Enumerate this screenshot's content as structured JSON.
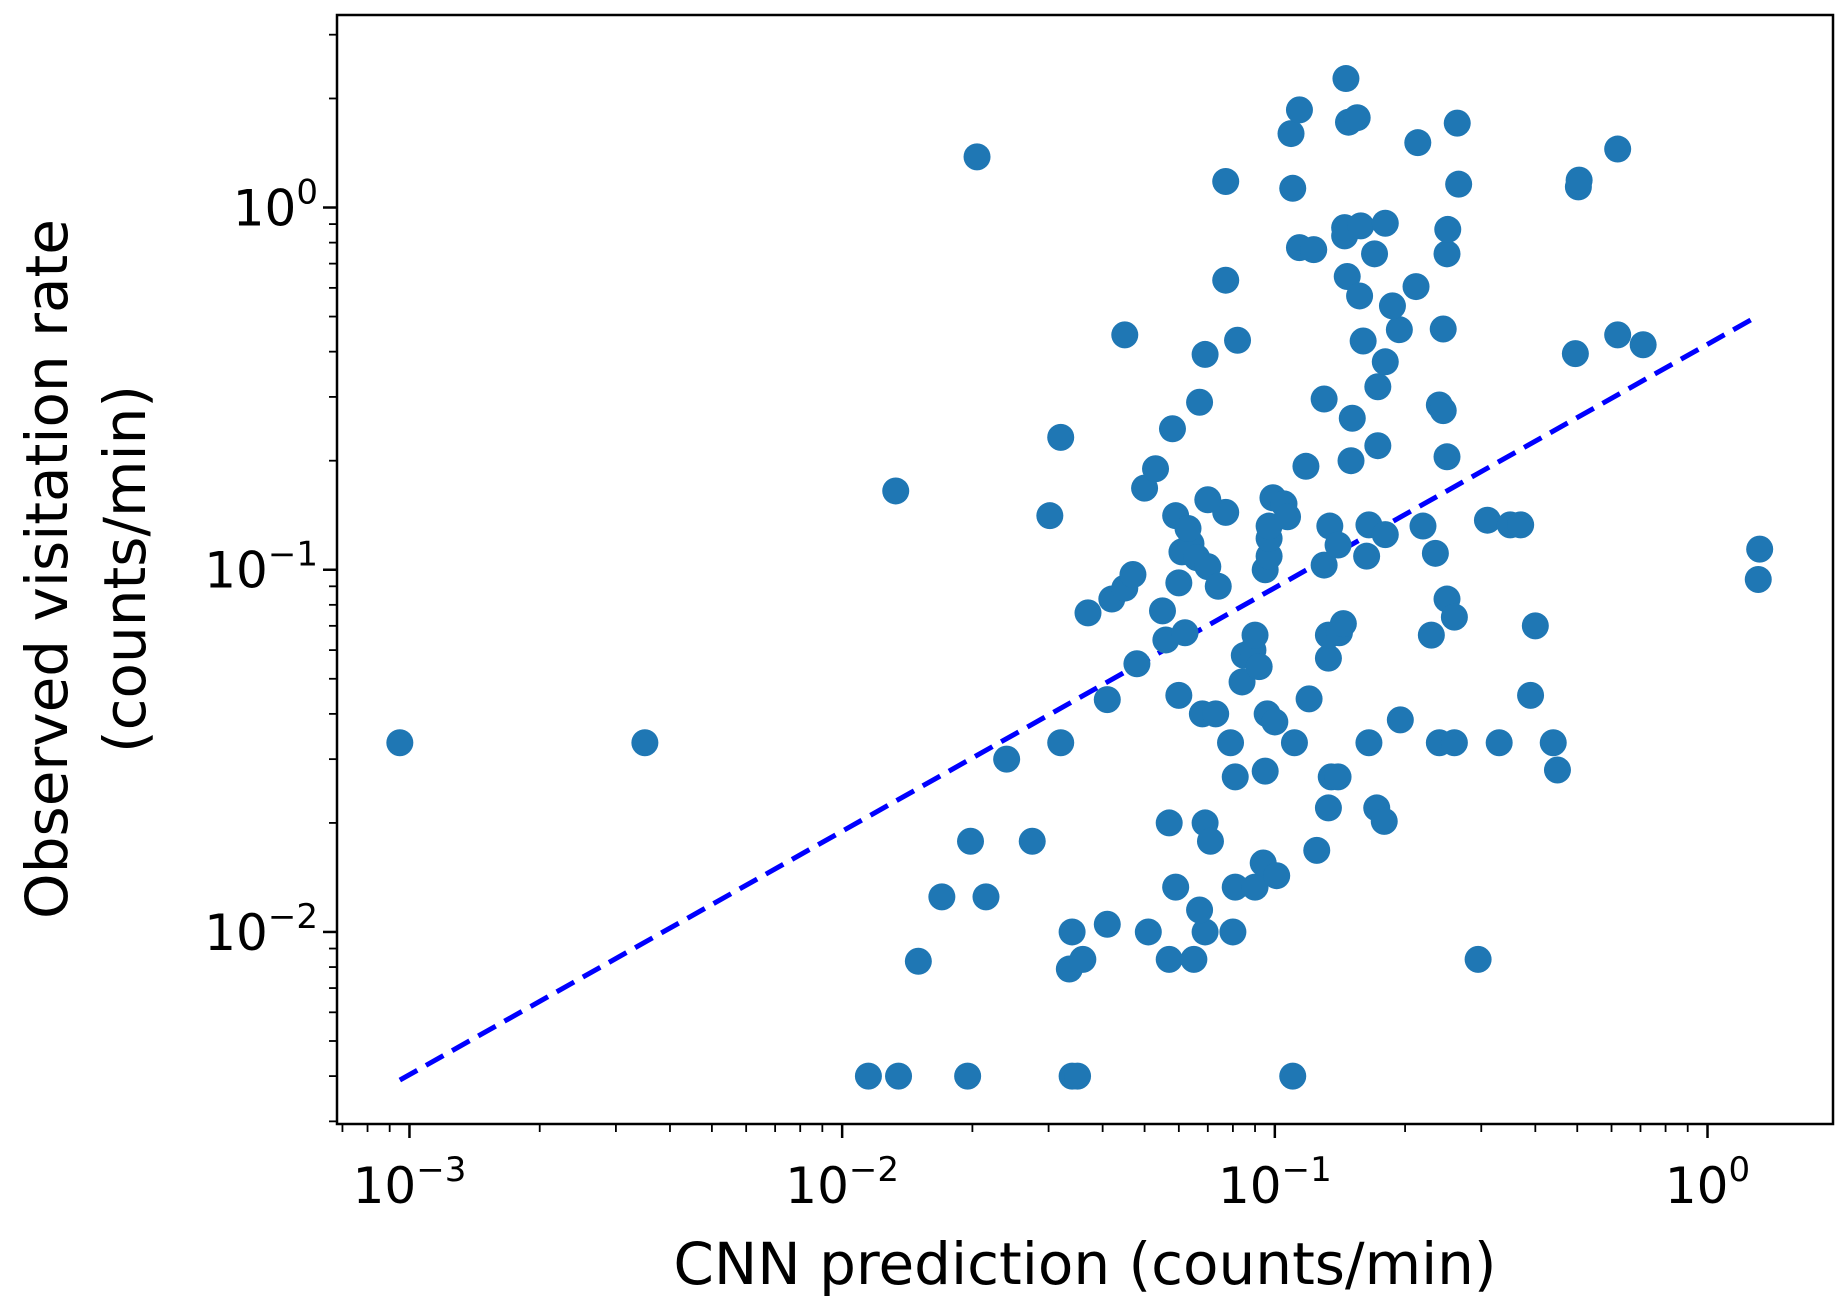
{
  "chart_data": {
    "type": "scatter",
    "xlabel": "CNN prediction (counts/min)",
    "ylabel_line1": "Observed visitation rate",
    "ylabel_line2": "(counts/min)",
    "xscale": "log",
    "yscale": "log",
    "xlim": [
      0.00068,
      1.95
    ],
    "ylim": [
      0.00295,
      3.4
    ],
    "grid": false,
    "legend": "none",
    "marker_color": "#1f77b4",
    "fit_line": {
      "color": "#0000ff",
      "style": "dashed",
      "x": [
        0.00095,
        1.3
      ],
      "y": [
        0.0039,
        0.5
      ]
    },
    "x_ticks": [
      {
        "value": 0.001,
        "base": "10",
        "exp": "−3"
      },
      {
        "value": 0.01,
        "base": "10",
        "exp": "−2"
      },
      {
        "value": 0.1,
        "base": "10",
        "exp": "−1"
      },
      {
        "value": 1,
        "base": "10",
        "exp": "0"
      }
    ],
    "y_ticks": [
      {
        "value": 0.01,
        "base": "10",
        "exp": "−2"
      },
      {
        "value": 0.1,
        "base": "10",
        "exp": "−1"
      },
      {
        "value": 1,
        "base": "10",
        "exp": "0"
      }
    ],
    "points": [
      [
        0.00095,
        0.0333
      ],
      [
        0.0035,
        0.0333
      ],
      [
        0.0115,
        0.004
      ],
      [
        0.0135,
        0.004
      ],
      [
        0.0195,
        0.004
      ],
      [
        0.034,
        0.004
      ],
      [
        0.035,
        0.004
      ],
      [
        0.11,
        0.004
      ],
      [
        0.015,
        0.0083
      ],
      [
        0.0335,
        0.0079
      ],
      [
        0.036,
        0.0084
      ],
      [
        0.057,
        0.0084
      ],
      [
        0.065,
        0.0084
      ],
      [
        0.295,
        0.0084
      ],
      [
        0.034,
        0.01
      ],
      [
        0.041,
        0.0105
      ],
      [
        0.051,
        0.01
      ],
      [
        0.069,
        0.01
      ],
      [
        0.08,
        0.01
      ],
      [
        0.017,
        0.0125
      ],
      [
        0.0215,
        0.0125
      ],
      [
        0.059,
        0.0133
      ],
      [
        0.067,
        0.0115
      ],
      [
        0.081,
        0.0133
      ],
      [
        0.09,
        0.0133
      ],
      [
        0.094,
        0.0155
      ],
      [
        0.101,
        0.0143
      ],
      [
        0.0198,
        0.0178
      ],
      [
        0.0275,
        0.0178
      ],
      [
        0.057,
        0.02
      ],
      [
        0.069,
        0.02
      ],
      [
        0.071,
        0.0178
      ],
      [
        0.125,
        0.0168
      ],
      [
        0.133,
        0.022
      ],
      [
        0.172,
        0.022
      ],
      [
        0.179,
        0.0202
      ],
      [
        0.024,
        0.03
      ],
      [
        0.032,
        0.0333
      ],
      [
        0.068,
        0.04
      ],
      [
        0.073,
        0.04
      ],
      [
        0.079,
        0.0333
      ],
      [
        0.081,
        0.0268
      ],
      [
        0.095,
        0.0278
      ],
      [
        0.096,
        0.04
      ],
      [
        0.1,
        0.038
      ],
      [
        0.111,
        0.0333
      ],
      [
        0.135,
        0.0268
      ],
      [
        0.14,
        0.0268
      ],
      [
        0.165,
        0.0333
      ],
      [
        0.195,
        0.0385
      ],
      [
        0.24,
        0.0333
      ],
      [
        0.26,
        0.0333
      ],
      [
        0.33,
        0.0333
      ],
      [
        0.44,
        0.0333
      ],
      [
        0.45,
        0.028
      ],
      [
        0.041,
        0.0438
      ],
      [
        0.048,
        0.055
      ],
      [
        0.056,
        0.064
      ],
      [
        0.06,
        0.045
      ],
      [
        0.062,
        0.067
      ],
      [
        0.084,
        0.049
      ],
      [
        0.085,
        0.058
      ],
      [
        0.089,
        0.06
      ],
      [
        0.09,
        0.066
      ],
      [
        0.092,
        0.054
      ],
      [
        0.12,
        0.044
      ],
      [
        0.133,
        0.057
      ],
      [
        0.133,
        0.066
      ],
      [
        0.141,
        0.067
      ],
      [
        0.144,
        0.071
      ],
      [
        0.23,
        0.066
      ],
      [
        0.25,
        0.083
      ],
      [
        0.26,
        0.074
      ],
      [
        0.4,
        0.07
      ],
      [
        0.39,
        0.045
      ],
      [
        0.037,
        0.076
      ],
      [
        0.042,
        0.083
      ],
      [
        0.045,
        0.089
      ],
      [
        0.047,
        0.097
      ],
      [
        0.055,
        0.077
      ],
      [
        0.06,
        0.092
      ],
      [
        0.061,
        0.112
      ],
      [
        0.064,
        0.118
      ],
      [
        0.066,
        0.108
      ],
      [
        0.07,
        0.102
      ],
      [
        0.074,
        0.09
      ],
      [
        0.077,
        0.144
      ],
      [
        0.07,
        0.156
      ],
      [
        0.059,
        0.141
      ],
      [
        0.063,
        0.13
      ],
      [
        0.095,
        0.1
      ],
      [
        0.097,
        0.109
      ],
      [
        0.097,
        0.122
      ],
      [
        0.097,
        0.132
      ],
      [
        0.099,
        0.158
      ],
      [
        0.105,
        0.152
      ],
      [
        0.107,
        0.14
      ],
      [
        0.13,
        0.103
      ],
      [
        0.134,
        0.132
      ],
      [
        0.14,
        0.117
      ],
      [
        0.163,
        0.109
      ],
      [
        0.165,
        0.133
      ],
      [
        0.18,
        0.125
      ],
      [
        0.22,
        0.132
      ],
      [
        0.235,
        0.111
      ],
      [
        0.31,
        0.137
      ],
      [
        0.35,
        0.133
      ],
      [
        0.37,
        0.133
      ],
      [
        1.32,
        0.114
      ],
      [
        1.31,
        0.094
      ],
      [
        0.0133,
        0.165
      ],
      [
        0.0302,
        0.141
      ],
      [
        0.032,
        0.232
      ],
      [
        0.05,
        0.168
      ],
      [
        0.053,
        0.19
      ],
      [
        0.058,
        0.245
      ],
      [
        0.067,
        0.29
      ],
      [
        0.069,
        0.393
      ],
      [
        0.082,
        0.43
      ],
      [
        0.045,
        0.445
      ],
      [
        0.118,
        0.193
      ],
      [
        0.13,
        0.296
      ],
      [
        0.15,
        0.2
      ],
      [
        0.151,
        0.262
      ],
      [
        0.173,
        0.22
      ],
      [
        0.173,
        0.32
      ],
      [
        0.18,
        0.375
      ],
      [
        0.16,
        0.428
      ],
      [
        0.194,
        0.46
      ],
      [
        0.24,
        0.285
      ],
      [
        0.245,
        0.275
      ],
      [
        0.25,
        0.205
      ],
      [
        0.245,
        0.462
      ],
      [
        0.495,
        0.395
      ],
      [
        0.62,
        0.445
      ],
      [
        0.71,
        0.418
      ],
      [
        0.0205,
        1.38
      ],
      [
        0.077,
        0.63
      ],
      [
        0.077,
        1.18
      ],
      [
        0.109,
        1.6
      ],
      [
        0.11,
        1.13
      ],
      [
        0.114,
        1.86
      ],
      [
        0.114,
        0.775
      ],
      [
        0.123,
        0.765
      ],
      [
        0.145,
        0.835
      ],
      [
        0.147,
        0.645
      ],
      [
        0.145,
        0.88
      ],
      [
        0.146,
        2.27
      ],
      [
        0.148,
        1.72
      ],
      [
        0.155,
        1.77
      ],
      [
        0.157,
        0.57
      ],
      [
        0.158,
        0.89
      ],
      [
        0.17,
        0.745
      ],
      [
        0.18,
        0.905
      ],
      [
        0.187,
        0.535
      ],
      [
        0.214,
        1.51
      ],
      [
        0.212,
        0.605
      ],
      [
        0.25,
        0.745
      ],
      [
        0.251,
        0.87
      ],
      [
        0.264,
        1.71
      ],
      [
        0.266,
        1.16
      ],
      [
        0.503,
        1.14
      ],
      [
        0.505,
        1.19
      ],
      [
        0.62,
        1.45
      ]
    ]
  }
}
